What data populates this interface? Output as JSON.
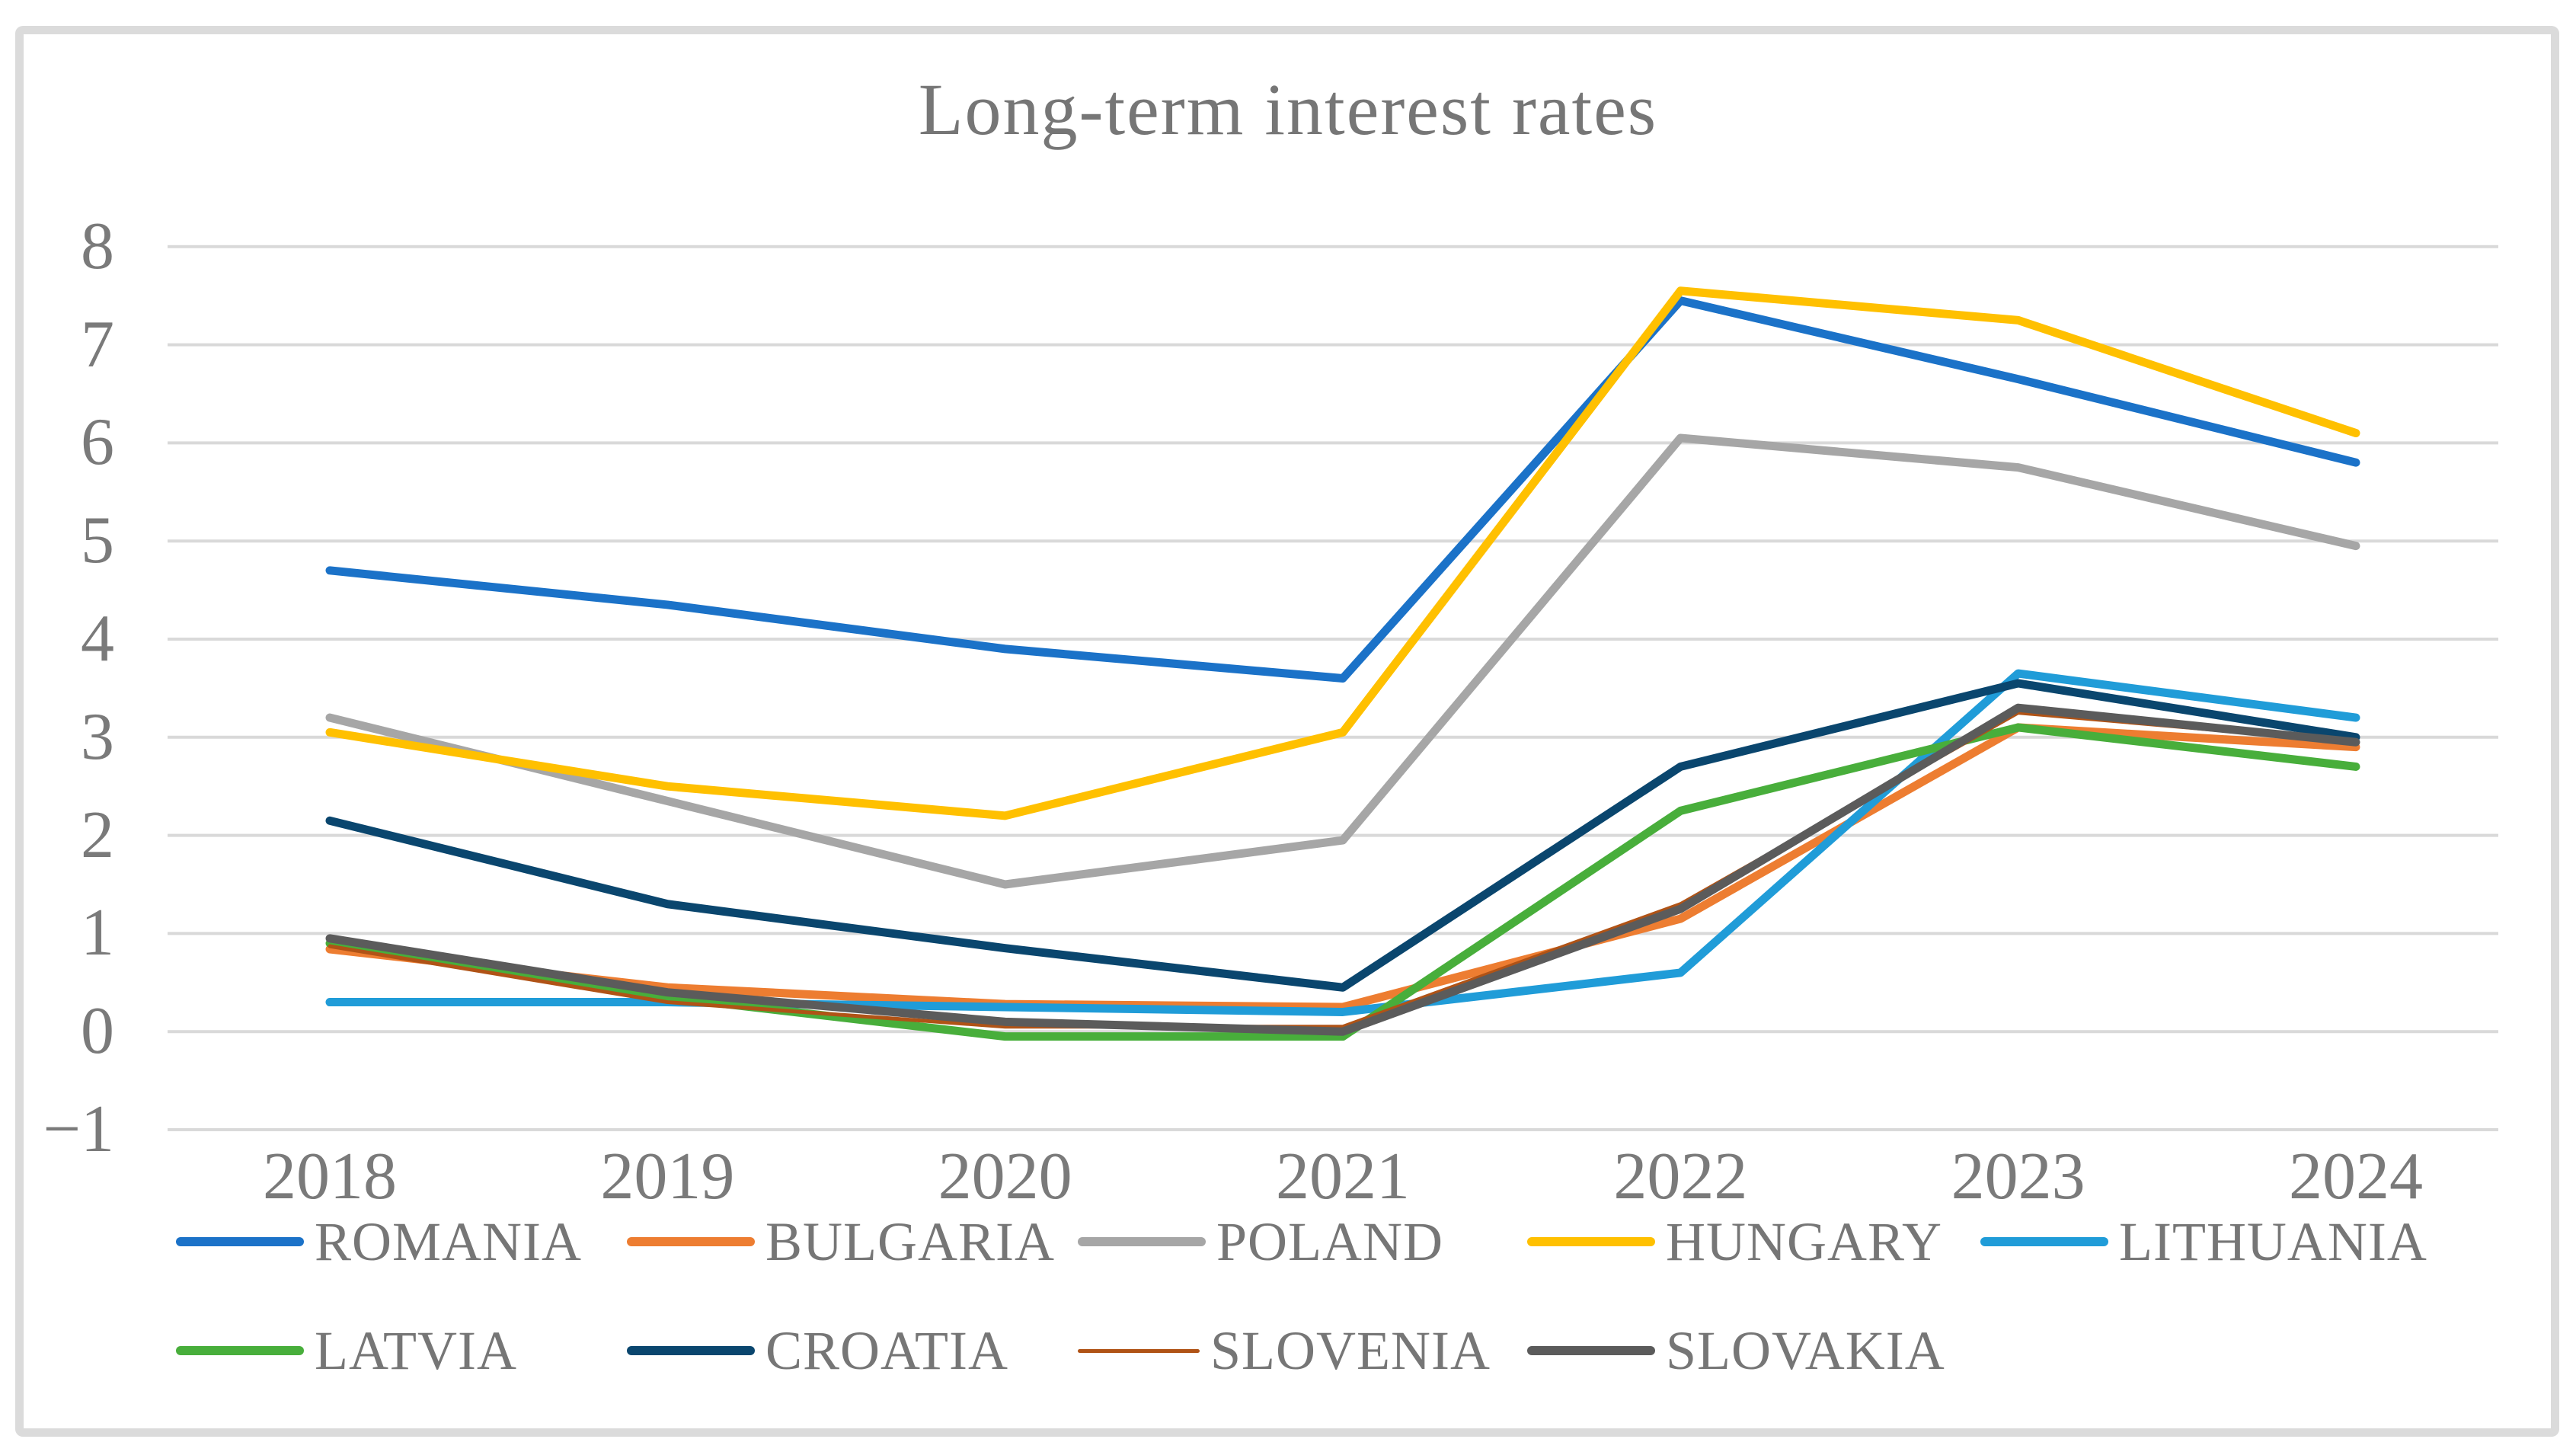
{
  "page": {
    "background": "#FFFFFF",
    "frame_color": "#DBDBDB",
    "grid_color": "#D9D9D9",
    "text_color": "#767676"
  },
  "chart_data": {
    "type": "line",
    "title": "Long-term interest rates",
    "xlabel": "",
    "ylabel": "",
    "categories": [
      "2018",
      "2019",
      "2020",
      "2021",
      "2022",
      "2023",
      "2024"
    ],
    "ylim": [
      -1,
      8
    ],
    "grid": "horizontal",
    "legend_position": "bottom",
    "y_ticks": [
      {
        "label": "8",
        "value": 8
      },
      {
        "label": "7",
        "value": 7
      },
      {
        "label": "6",
        "value": 6
      },
      {
        "label": "5",
        "value": 5
      },
      {
        "label": "4",
        "value": 4
      },
      {
        "label": "3",
        "value": 3
      },
      {
        "label": "2",
        "value": 2
      },
      {
        "label": "1",
        "value": 1
      },
      {
        "label": "0",
        "value": 0
      },
      {
        "label": "−1",
        "value": -1
      }
    ],
    "series": [
      {
        "name": "ROMANIA",
        "color": "#1B72C8",
        "thin": false,
        "values": [
          4.7,
          4.35,
          3.9,
          3.6,
          7.45,
          6.65,
          5.8
        ]
      },
      {
        "name": "BULGARIA",
        "color": "#ED7D31",
        "thin": false,
        "values": [
          0.84,
          0.45,
          0.28,
          0.25,
          1.15,
          3.1,
          2.9
        ]
      },
      {
        "name": "POLAND",
        "color": "#A6A6A6",
        "thin": false,
        "values": [
          3.2,
          2.35,
          1.5,
          1.95,
          6.05,
          5.75,
          4.95
        ]
      },
      {
        "name": "HUNGARY",
        "color": "#FFC000",
        "thin": false,
        "values": [
          3.05,
          2.5,
          2.2,
          3.05,
          7.55,
          7.25,
          6.1
        ]
      },
      {
        "name": "LITHUANIA",
        "color": "#209CD8",
        "thin": false,
        "values": [
          0.3,
          0.3,
          0.25,
          0.2,
          0.6,
          3.65,
          3.2
        ]
      },
      {
        "name": "LATVIA",
        "color": "#48AE3B",
        "thin": false,
        "values": [
          0.9,
          0.35,
          -0.05,
          -0.05,
          2.25,
          3.1,
          2.7
        ]
      },
      {
        "name": "CROATIA",
        "color": "#0A466E",
        "thin": false,
        "values": [
          2.15,
          1.3,
          0.85,
          0.45,
          2.7,
          3.55,
          3.0
        ]
      },
      {
        "name": "SLOVENIA",
        "color": "#B05316",
        "thin": true,
        "values": [
          0.87,
          0.3,
          0.05,
          0.05,
          1.3,
          3.25,
          2.95
        ]
      },
      {
        "name": "SLOVAKIA",
        "color": "#5B5B5B",
        "thin": false,
        "values": [
          0.95,
          0.4,
          0.1,
          0.0,
          1.25,
          3.3,
          2.95
        ]
      }
    ]
  }
}
